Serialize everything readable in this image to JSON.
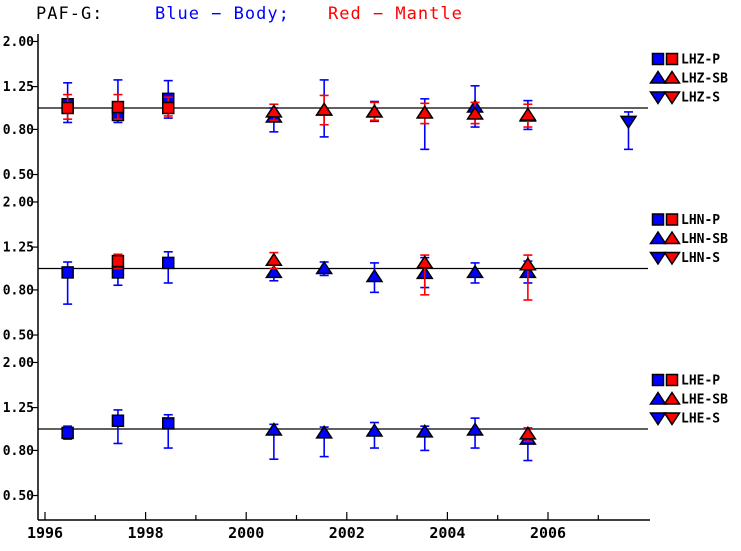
{
  "title": {
    "station": "PAF-G:",
    "body_label": "Blue − Body;",
    "mantle_label": "Red − Mantle"
  },
  "colors": {
    "body": "#0000ff",
    "mantle": "#ff0000",
    "axis": "#000000",
    "background": "#ffffff"
  },
  "chart_data": {
    "type": "scatter",
    "title": "PAF-G:  Blue − Body;  Red − Mantle",
    "x_axis": {
      "range": [
        1995.85,
        2008.05
      ],
      "major_ticks": [
        1996,
        1998,
        2000,
        2002,
        2004,
        2006
      ],
      "major_labels": [
        "1996",
        "1998",
        "2000",
        "2002",
        "2004",
        "2006"
      ],
      "minor_ticks": [
        1997,
        1999,
        2001,
        2003,
        2005,
        2007
      ]
    },
    "y_ticks": {
      "values": [
        2.0,
        1.25,
        0.8,
        0.5
      ],
      "labels": [
        "2.00",
        "1.25",
        "0.80",
        "0.50"
      ]
    },
    "panels": [
      {
        "channel": "LHZ",
        "reference_line": 1.0,
        "y_scale": "log",
        "legend": [
          {
            "label": "LHZ-P",
            "marker": "square"
          },
          {
            "label": "LHZ-SB",
            "marker": "triangle-up"
          },
          {
            "label": "LHZ-S",
            "marker": "triangle-down"
          }
        ],
        "series": [
          {
            "name": "LHZ-P body",
            "color": "body",
            "marker": "square",
            "points": [
              {
                "x": 1996.45,
                "v": 1.04,
                "lo": 0.86,
                "hi": 1.3
              },
              {
                "x": 1997.45,
                "v": 0.93,
                "lo": 0.86,
                "hi": 1.34
              },
              {
                "x": 1998.45,
                "v": 1.1,
                "lo": 0.9,
                "hi": 1.33
              }
            ]
          },
          {
            "name": "LHZ-P mantle",
            "color": "mantle",
            "marker": "square",
            "points": [
              {
                "x": 1996.45,
                "v": 1.0,
                "lo": 0.89,
                "hi": 1.15
              },
              {
                "x": 1997.45,
                "v": 1.01,
                "lo": 0.89,
                "hi": 1.15
              },
              {
                "x": 1998.45,
                "v": 1.0,
                "lo": 0.92,
                "hi": 1.12
              }
            ]
          },
          {
            "name": "LHZ-SB body",
            "color": "body",
            "marker": "triangle-up",
            "points": [
              {
                "x": 2000.55,
                "v": 0.91,
                "lo": 0.78,
                "hi": 1.0
              },
              {
                "x": 2001.55,
                "v": 0.98,
                "lo": 0.74,
                "hi": 1.34
              },
              {
                "x": 2002.55,
                "v": 0.96,
                "lo": 0.87,
                "hi": 1.07
              },
              {
                "x": 2003.55,
                "v": 0.95,
                "lo": 0.65,
                "hi": 1.1
              },
              {
                "x": 2004.55,
                "v": 1.01,
                "lo": 0.82,
                "hi": 1.26
              },
              {
                "x": 2005.6,
                "v": 0.92,
                "lo": 0.8,
                "hi": 1.08
              }
            ]
          },
          {
            "name": "LHZ-SB mantle",
            "color": "mantle",
            "marker": "triangle-up",
            "points": [
              {
                "x": 2000.55,
                "v": 0.96,
                "lo": 0.88,
                "hi": 1.04
              },
              {
                "x": 2001.55,
                "v": 0.98,
                "lo": 0.84,
                "hi": 1.14
              },
              {
                "x": 2002.55,
                "v": 0.96,
                "lo": 0.88,
                "hi": 1.06
              },
              {
                "x": 2003.55,
                "v": 0.95,
                "lo": 0.85,
                "hi": 1.05
              },
              {
                "x": 2004.55,
                "v": 0.94,
                "lo": 0.85,
                "hi": 1.06
              },
              {
                "x": 2005.6,
                "v": 0.93,
                "lo": 0.82,
                "hi": 1.04
              }
            ]
          },
          {
            "name": "LHZ-S body",
            "color": "body",
            "marker": "triangle-down",
            "points": [
              {
                "x": 2007.6,
                "v": 0.87,
                "lo": 0.65,
                "hi": 0.96
              }
            ]
          }
        ]
      },
      {
        "channel": "LHN",
        "reference_line": 1.0,
        "y_scale": "log",
        "legend": [
          {
            "label": "LHN-P",
            "marker": "square"
          },
          {
            "label": "LHN-SB",
            "marker": "triangle-up"
          },
          {
            "label": "LHN-S",
            "marker": "triangle-down"
          }
        ],
        "series": [
          {
            "name": "LHN-P body",
            "color": "body",
            "marker": "square",
            "points": [
              {
                "x": 1996.45,
                "v": 0.96,
                "lo": 0.69,
                "hi": 1.07
              },
              {
                "x": 1997.45,
                "v": 0.96,
                "lo": 0.84,
                "hi": 1.1
              },
              {
                "x": 1998.45,
                "v": 1.06,
                "lo": 0.86,
                "hi": 1.19
              }
            ]
          },
          {
            "name": "LHN-P mantle",
            "color": "mantle",
            "marker": "square",
            "points": [
              {
                "x": 1997.45,
                "v": 1.08,
                "lo": 1.0,
                "hi": 1.16
              }
            ]
          },
          {
            "name": "LHN-SB body",
            "color": "body",
            "marker": "triangle-up",
            "points": [
              {
                "x": 2000.55,
                "v": 0.96,
                "lo": 0.88,
                "hi": 1.05
              },
              {
                "x": 2001.55,
                "v": 1.0,
                "lo": 0.93,
                "hi": 1.07
              },
              {
                "x": 2002.55,
                "v": 0.92,
                "lo": 0.78,
                "hi": 1.06
              },
              {
                "x": 2003.55,
                "v": 0.95,
                "lo": 0.82,
                "hi": 1.12
              },
              {
                "x": 2004.55,
                "v": 0.96,
                "lo": 0.86,
                "hi": 1.06
              },
              {
                "x": 2005.6,
                "v": 0.96,
                "lo": 0.86,
                "hi": 1.08
              }
            ]
          },
          {
            "name": "LHN-SB mantle",
            "color": "mantle",
            "marker": "triangle-up",
            "points": [
              {
                "x": 2000.55,
                "v": 1.09,
                "lo": 1.0,
                "hi": 1.18
              },
              {
                "x": 2003.55,
                "v": 1.06,
                "lo": 0.76,
                "hi": 1.15
              },
              {
                "x": 2005.6,
                "v": 1.04,
                "lo": 0.72,
                "hi": 1.15
              }
            ]
          }
        ]
      },
      {
        "channel": "LHE",
        "reference_line": 1.0,
        "y_scale": "log",
        "legend": [
          {
            "label": "LHE-P",
            "marker": "square"
          },
          {
            "label": "LHE-SB",
            "marker": "triangle-up"
          },
          {
            "label": "LHE-S",
            "marker": "triangle-down"
          }
        ],
        "series": [
          {
            "name": "LHE-P body",
            "color": "body",
            "marker": "square",
            "points": [
              {
                "x": 1996.45,
                "v": 0.96,
                "lo": 0.9,
                "hi": 1.03
              },
              {
                "x": 1997.45,
                "v": 1.09,
                "lo": 0.86,
                "hi": 1.22
              },
              {
                "x": 1998.45,
                "v": 1.06,
                "lo": 0.82,
                "hi": 1.16
              }
            ]
          },
          {
            "name": "LHE-SB body",
            "color": "body",
            "marker": "triangle-up",
            "points": [
              {
                "x": 2000.55,
                "v": 0.99,
                "lo": 0.73,
                "hi": 1.05
              },
              {
                "x": 2001.55,
                "v": 0.96,
                "lo": 0.75,
                "hi": 1.02
              },
              {
                "x": 2002.55,
                "v": 0.98,
                "lo": 0.82,
                "hi": 1.07
              },
              {
                "x": 2003.55,
                "v": 0.97,
                "lo": 0.8,
                "hi": 1.03
              },
              {
                "x": 2004.55,
                "v": 0.99,
                "lo": 0.82,
                "hi": 1.12
              },
              {
                "x": 2005.6,
                "v": 0.9,
                "lo": 0.72,
                "hi": 1.01
              }
            ]
          },
          {
            "name": "LHE-SB mantle",
            "color": "mantle",
            "marker": "triangle-up",
            "points": [
              {
                "x": 2005.6,
                "v": 0.95,
                "lo": 0.88,
                "hi": 1.0
              }
            ]
          }
        ]
      }
    ]
  }
}
